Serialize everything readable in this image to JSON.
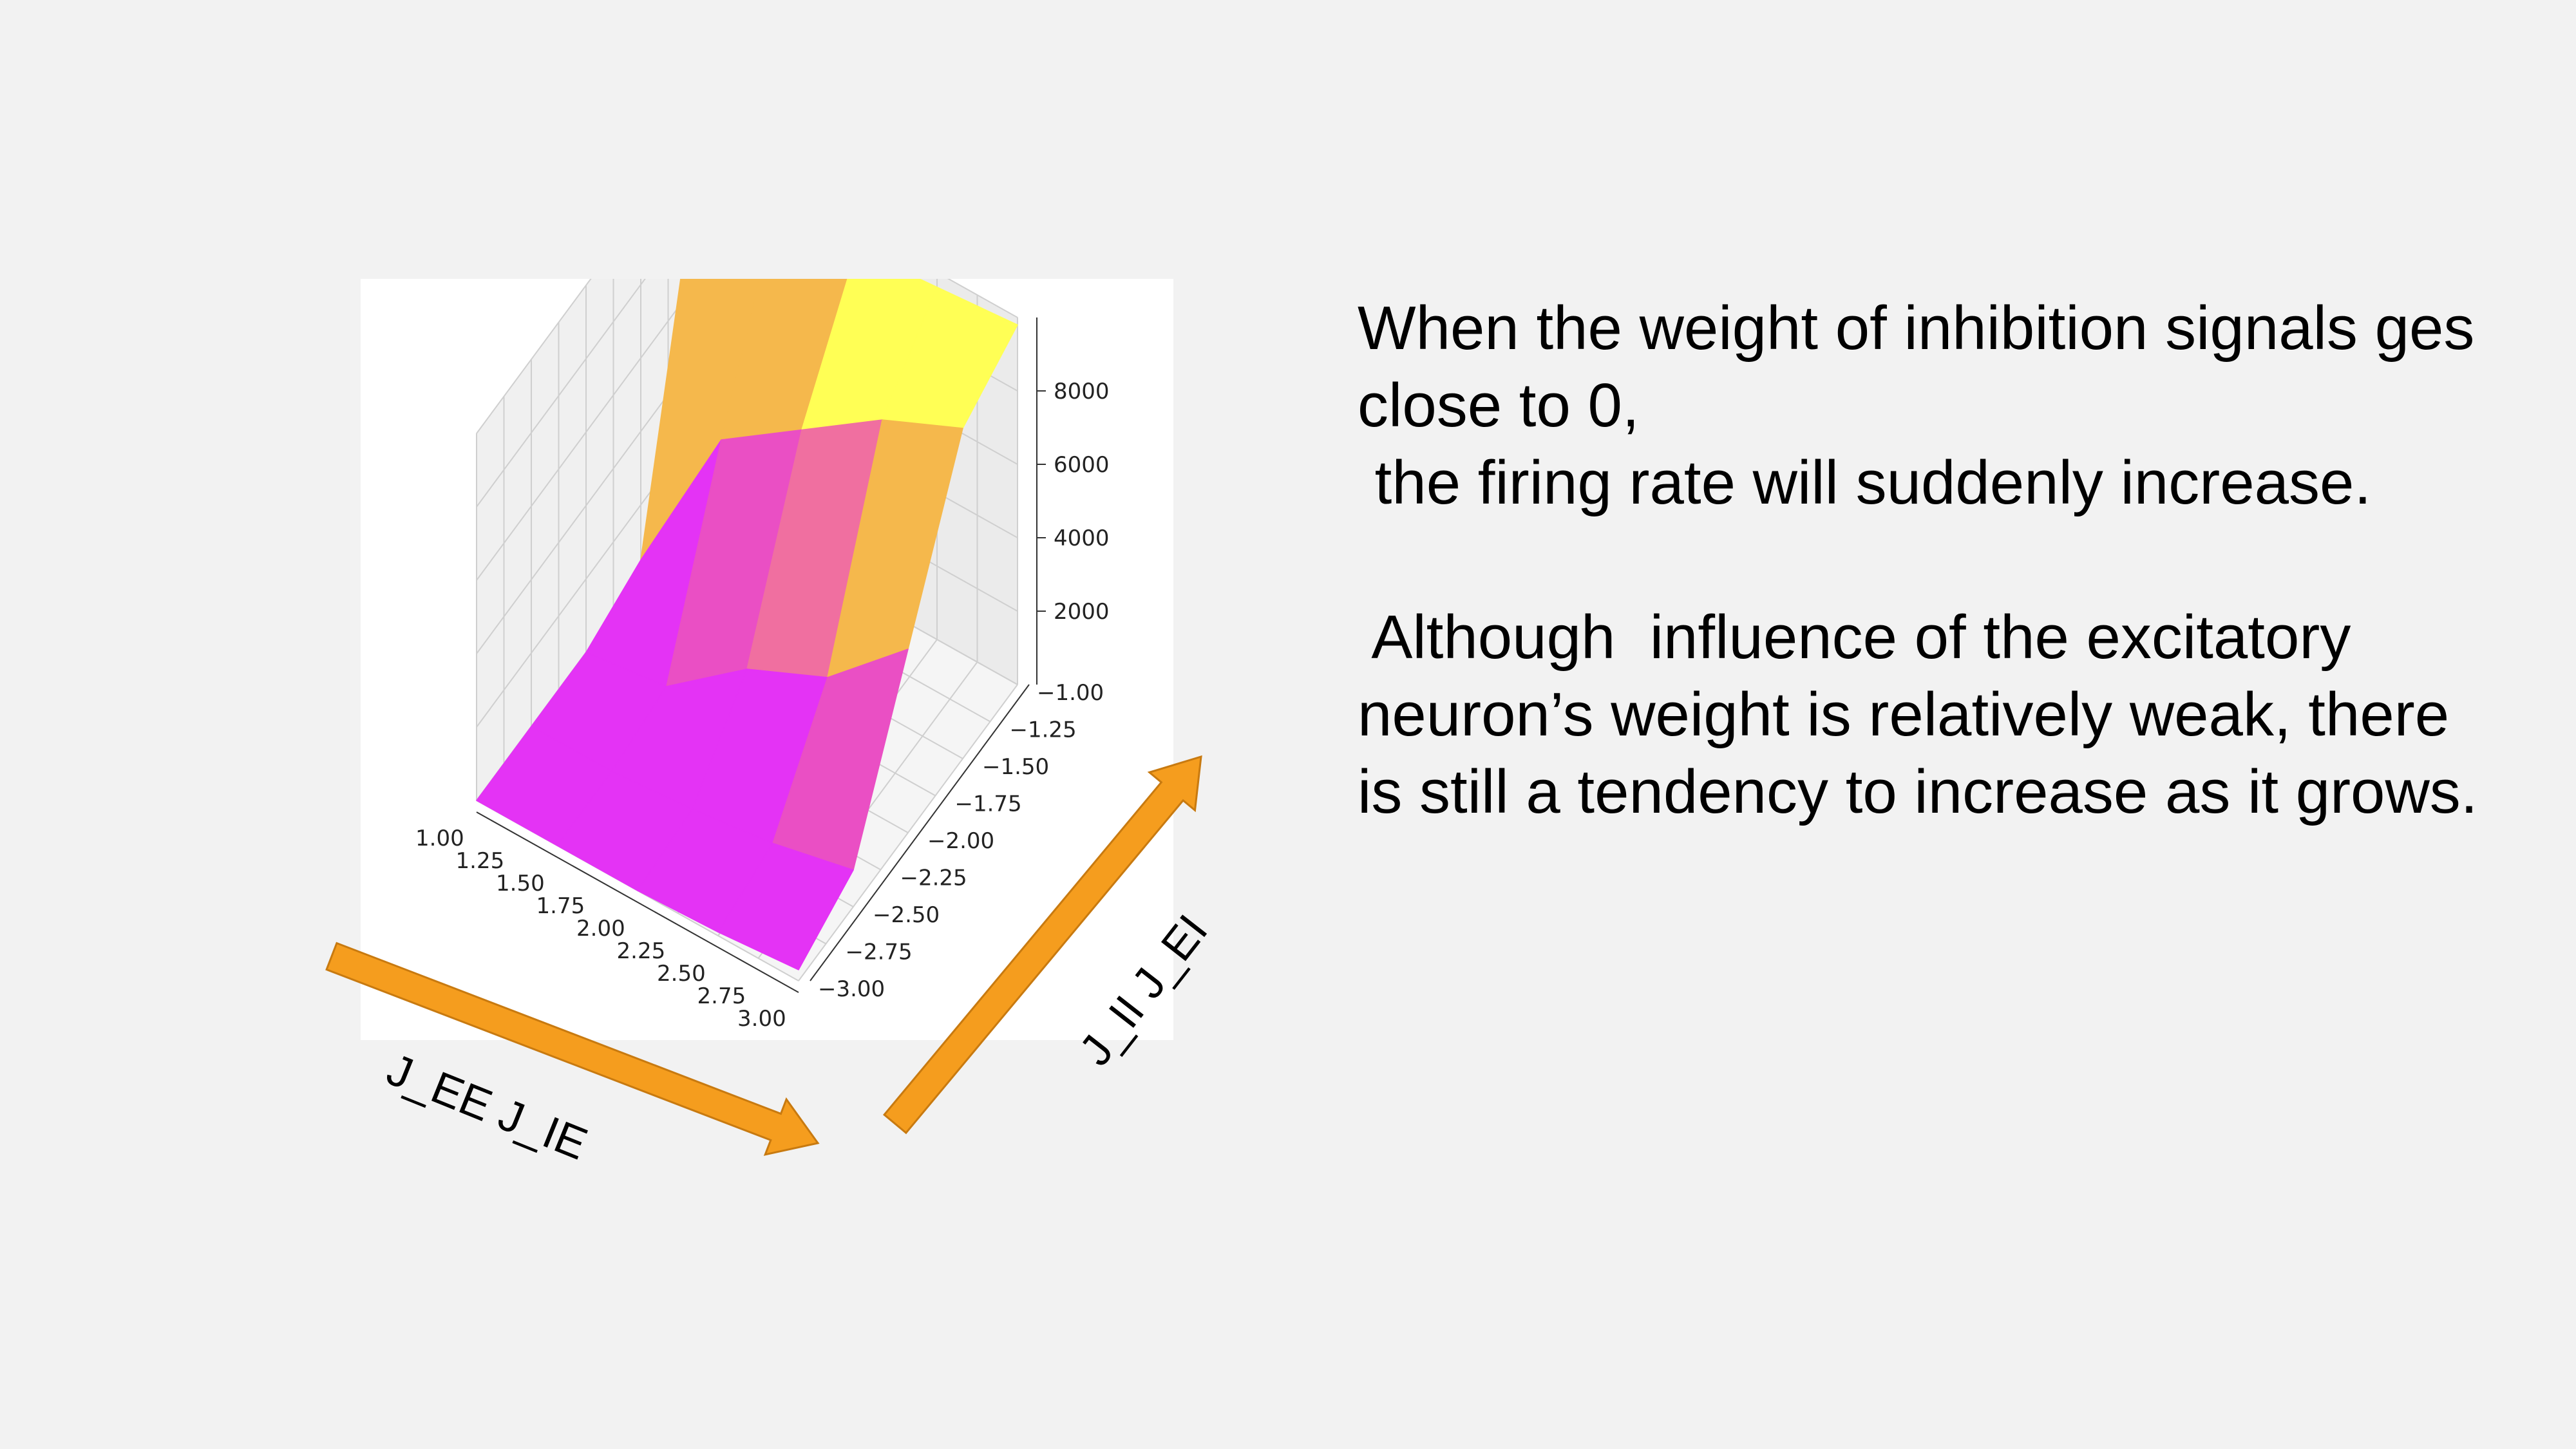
{
  "chart_data": {
    "type": "surface3d",
    "title": "",
    "x_ticks": [
      "1.00",
      "1.25",
      "1.50",
      "1.75",
      "2.00",
      "2.25",
      "2.50",
      "2.75",
      "3.00"
    ],
    "y_ticks": [
      "−1.00",
      "−1.25",
      "−1.50",
      "−1.75",
      "−2.00",
      "−2.25",
      "−2.50",
      "−2.75",
      "−3.00"
    ],
    "z_ticks": [
      "2000",
      "4000",
      "6000",
      "8000"
    ],
    "xlim": [
      1.0,
      3.0
    ],
    "ylim": [
      -3.0,
      -1.0
    ],
    "zlim": [
      0,
      10000
    ],
    "x": [
      1.0,
      1.5,
      2.0,
      2.5,
      3.0
    ],
    "y": [
      -3.0,
      -2.5,
      -2.0,
      -1.5,
      -1.0
    ],
    "z": [
      [
        0,
        0,
        0,
        500,
        9000
      ],
      [
        0,
        0,
        300,
        5000,
        9200
      ],
      [
        0,
        200,
        2000,
        6500,
        9400
      ],
      [
        100,
        500,
        3000,
        8000,
        9600
      ],
      [
        300,
        1000,
        5000,
        9000,
        9800
      ]
    ],
    "colormap": [
      "#e433f5",
      "#ea4fc4",
      "#f06fa0",
      "#f5b84c",
      "#ffff55"
    ],
    "grid": true
  },
  "axis_labels": {
    "ee_ie": "J_EE J_IE",
    "ii_ei": "J_II J_EI"
  },
  "arrow_color": "#f59d1e",
  "text": {
    "line1": "When the weight of inhibition signals ges",
    "line2": "close to 0,",
    "line3": " the firing rate will suddenly increase.",
    "line4": " Although  influence of the excitatory",
    "line5": "neuron’s weight is relatively weak, there",
    "line6": "is still a tendency to increase as it grows."
  }
}
